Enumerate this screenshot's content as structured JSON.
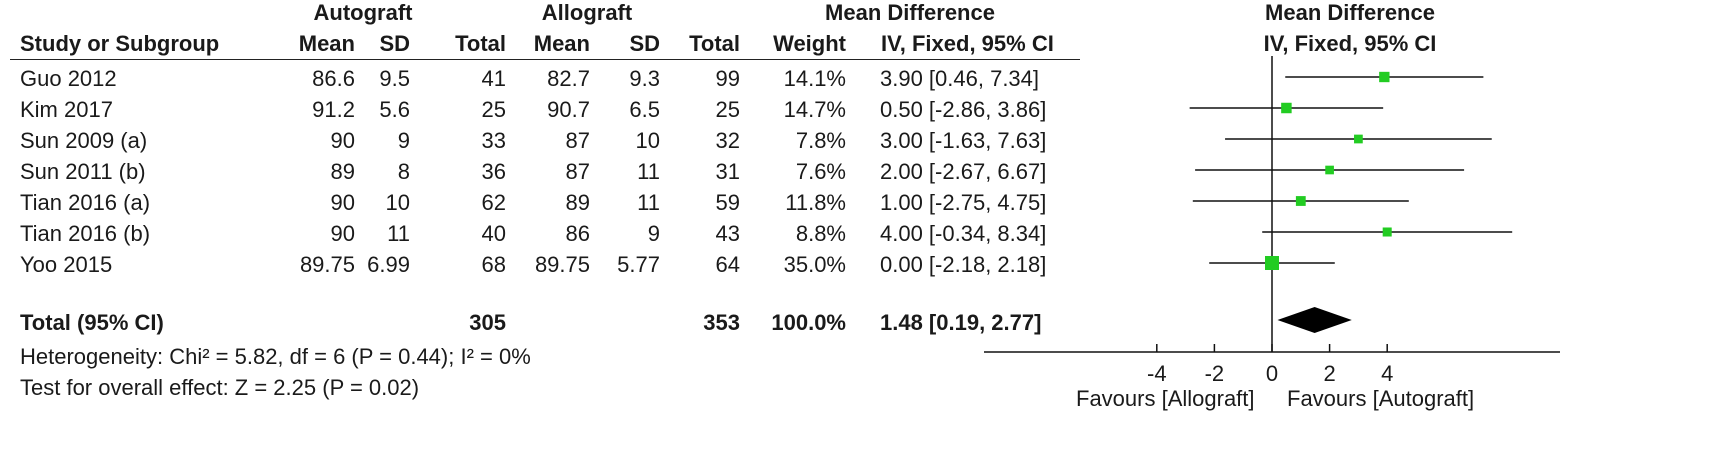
{
  "headers": {
    "group1": "Autograft",
    "group2": "Allograft",
    "md_top": "Mean Difference",
    "md_sub": "IV, Fixed, 95% CI",
    "plot_top": "Mean Difference",
    "plot_sub": "IV, Fixed, 95% CI",
    "study": "Study or Subgroup",
    "mean1": "Mean",
    "sd1": "SD",
    "total1": "Total",
    "mean2": "Mean",
    "sd2": "SD",
    "total2": "Total",
    "weight": "Weight"
  },
  "studies": [
    {
      "name": "Guo 2012",
      "mean1": "86.6",
      "sd1": "9.5",
      "total1": "41",
      "mean2": "82.7",
      "sd2": "9.3",
      "total2": "99",
      "weight": "14.1%",
      "ci_text": "3.90 [0.46, 7.34]"
    },
    {
      "name": "Kim 2017",
      "mean1": "91.2",
      "sd1": "5.6",
      "total1": "25",
      "mean2": "90.7",
      "sd2": "6.5",
      "total2": "25",
      "weight": "14.7%",
      "ci_text": "0.50 [-2.86, 3.86]"
    },
    {
      "name": "Sun 2009 (a)",
      "mean1": "90",
      "sd1": "9",
      "total1": "33",
      "mean2": "87",
      "sd2": "10",
      "total2": "32",
      "weight": "7.8%",
      "ci_text": "3.00 [-1.63, 7.63]"
    },
    {
      "name": "Sun 2011 (b)",
      "mean1": "89",
      "sd1": "8",
      "total1": "36",
      "mean2": "87",
      "sd2": "11",
      "total2": "31",
      "weight": "7.6%",
      "ci_text": "2.00 [-2.67, 6.67]"
    },
    {
      "name": "Tian 2016 (a)",
      "mean1": "90",
      "sd1": "10",
      "total1": "62",
      "mean2": "89",
      "sd2": "11",
      "total2": "59",
      "weight": "11.8%",
      "ci_text": "1.00 [-2.75, 4.75]"
    },
    {
      "name": "Tian 2016 (b)",
      "mean1": "90",
      "sd1": "11",
      "total1": "40",
      "mean2": "86",
      "sd2": "9",
      "total2": "43",
      "weight": "8.8%",
      "ci_text": "4.00 [-0.34, 8.34]"
    },
    {
      "name": "Yoo 2015",
      "mean1": "89.75",
      "sd1": "6.99",
      "total1": "68",
      "mean2": "89.75",
      "sd2": "5.77",
      "total2": "64",
      "weight": "35.0%",
      "ci_text": "0.00 [-2.18, 2.18]"
    }
  ],
  "total": {
    "label": "Total (95% CI)",
    "total1": "305",
    "total2": "353",
    "weight": "100.0%",
    "ci_text": "1.48 [0.19, 2.77]"
  },
  "footer": {
    "heterogeneity": "Heterogeneity: Chi² = 5.82, df = 6 (P = 0.44); I² = 0%",
    "overall": "Test for overall effect: Z = 2.25 (P = 0.02)"
  },
  "axis": {
    "favours_left": "Favours [Allograft]",
    "favours_right": "Favours [Autograft]"
  },
  "colors": {
    "marker": "#22cc22",
    "line": "#111111",
    "diamond": "#000000"
  },
  "chart_data": {
    "type": "scatter",
    "subtype": "forest plot",
    "xlim": [
      -10,
      10
    ],
    "ticks": [
      -4,
      -2,
      0,
      2,
      4
    ],
    "points": [
      {
        "study": "Guo 2012",
        "md": 3.9,
        "lo": 0.46,
        "hi": 7.34,
        "weight": 14.1
      },
      {
        "study": "Kim 2017",
        "md": 0.5,
        "lo": -2.86,
        "hi": 3.86,
        "weight": 14.7
      },
      {
        "study": "Sun 2009 (a)",
        "md": 3.0,
        "lo": -1.63,
        "hi": 7.63,
        "weight": 7.8
      },
      {
        "study": "Sun 2011 (b)",
        "md": 2.0,
        "lo": -2.67,
        "hi": 6.67,
        "weight": 7.6
      },
      {
        "study": "Tian 2016 (a)",
        "md": 1.0,
        "lo": -2.75,
        "hi": 4.75,
        "weight": 11.8
      },
      {
        "study": "Tian 2016 (b)",
        "md": 4.0,
        "lo": -0.34,
        "hi": 8.34,
        "weight": 8.8
      },
      {
        "study": "Yoo 2015",
        "md": 0.0,
        "lo": -2.18,
        "hi": 2.18,
        "weight": 35.0
      }
    ],
    "pooled": {
      "md": 1.48,
      "lo": 0.19,
      "hi": 2.77
    }
  }
}
